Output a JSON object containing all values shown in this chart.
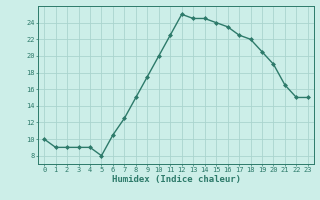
{
  "x": [
    0,
    1,
    2,
    3,
    4,
    5,
    6,
    7,
    8,
    9,
    10,
    11,
    12,
    13,
    14,
    15,
    16,
    17,
    18,
    19,
    20,
    21,
    22,
    23
  ],
  "y": [
    10,
    9,
    9,
    9,
    9,
    8,
    10.5,
    12.5,
    15,
    17.5,
    20,
    22.5,
    25,
    24.5,
    24.5,
    24,
    23.5,
    22.5,
    22,
    20.5,
    19,
    16.5,
    15,
    15
  ],
  "line_color": "#2d7a6a",
  "marker": "D",
  "marker_size": 2,
  "bg_color": "#cceee8",
  "grid_color": "#aad4ce",
  "xlabel": "Humidex (Indice chaleur)",
  "xlim": [
    -0.5,
    23.5
  ],
  "ylim": [
    7,
    26
  ],
  "yticks": [
    8,
    10,
    12,
    14,
    16,
    18,
    20,
    22,
    24
  ],
  "xticks": [
    0,
    1,
    2,
    3,
    4,
    5,
    6,
    7,
    8,
    9,
    10,
    11,
    12,
    13,
    14,
    15,
    16,
    17,
    18,
    19,
    20,
    21,
    22,
    23
  ],
  "tick_fontsize": 5,
  "xlabel_fontsize": 6.5,
  "linewidth": 1.0
}
